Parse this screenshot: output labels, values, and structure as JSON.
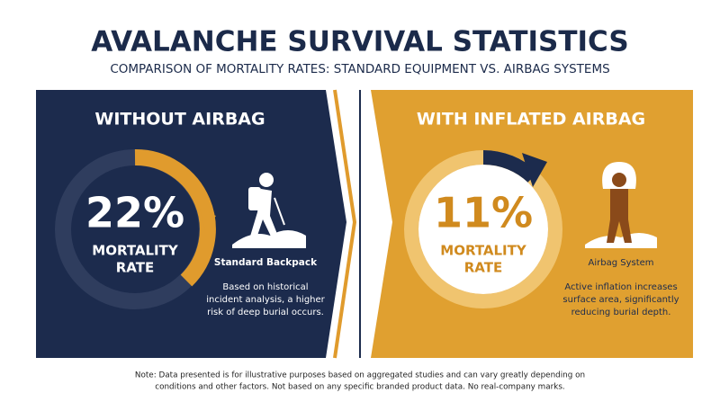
{
  "header": {
    "title": "AVALANCHE SURVIVAL STATISTICS",
    "subtitle": "COMPARISON OF MORTALITY RATES: STANDARD EQUIPMENT VS. AIRBAG SYSTEMS"
  },
  "panels": [
    {
      "heading": "WITHOUT AIRBAG",
      "stat": "22%",
      "stat_label": [
        "MORTALITY",
        "RATE"
      ],
      "icon_label": "Standard Backpack",
      "description": [
        "Based on historical",
        "incident analysis, a higher",
        "risk of deep burial occurs."
      ]
    },
    {
      "heading": "WITH INFLATED AIRBAG",
      "stat": "11%",
      "stat_label": [
        "MORTALITY",
        "RATE"
      ],
      "icon_label": "Airbag System",
      "description": [
        "Active inflation increases",
        "surface area, significantly",
        "reducing burial depth."
      ]
    }
  ],
  "footer": {
    "note": [
      "Note: Data presented is for illustrative purposes based on aggregated studies and can vary greatly depending on",
      "conditions and other factors. Not based on any specific branded product data. No real-company marks."
    ]
  }
}
